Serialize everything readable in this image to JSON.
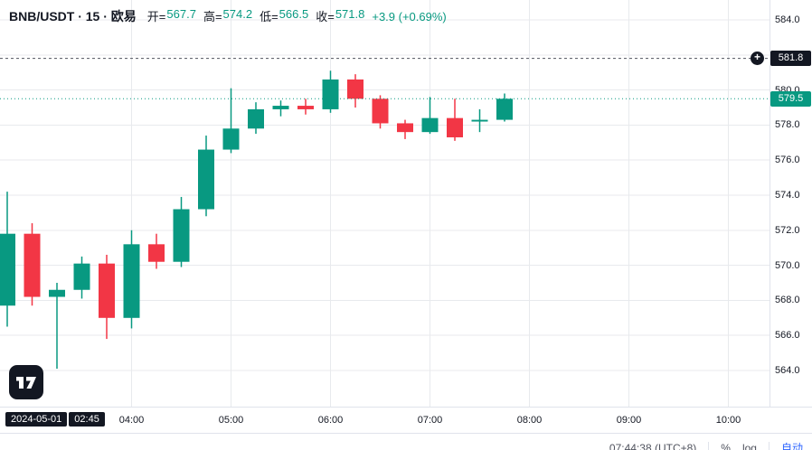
{
  "header": {
    "symbol_title": "BNB/USDT · 15 · 欧易",
    "ohlc": {
      "open_label": "开=",
      "open_value": "567.7",
      "high_label": "高=",
      "high_value": "574.2",
      "low_label": "低=",
      "low_value": "566.5",
      "close_label": "收=",
      "close_value": "571.8",
      "change_value": "+3.9 (+0.69%)"
    }
  },
  "price_scale": {
    "ticks": [
      "584.0",
      "580.0",
      "578.0",
      "576.0",
      "574.0",
      "572.0",
      "570.0",
      "568.0",
      "566.0",
      "564.0"
    ],
    "alert_price_label": "581.8",
    "current_price_label": "579.5"
  },
  "time_scale": {
    "crosshair_date": "2024-05-01",
    "crosshair_time": "02:45",
    "ticks": [
      {
        "label": "04:00",
        "index": 5
      },
      {
        "label": "05:00",
        "index": 9
      },
      {
        "label": "06:00",
        "index": 13
      },
      {
        "label": "07:00",
        "index": 17
      },
      {
        "label": "08:00",
        "index": 21
      },
      {
        "label": "09:00",
        "index": 25
      },
      {
        "label": "10:00",
        "index": 29
      }
    ]
  },
  "status_bar": {
    "clock": "07:44:38 (UTC+8)",
    "percent_label": "%",
    "log_label": "log",
    "auto_label": "自动"
  },
  "colors": {
    "up": "#089981",
    "down": "#f23645",
    "accent_blue": "#2962ff",
    "badge_dark": "#131722",
    "grid": "#e8eaed",
    "dashed_line": "#50535e"
  },
  "chart_data": {
    "type": "candlestick",
    "title": "BNB/USDT · 15 · 欧易",
    "interval_minutes": 15,
    "ylim": [
      562.0,
      585.2
    ],
    "alert_line": 581.8,
    "last_price": 579.5,
    "candles": [
      {
        "time": "02:45",
        "open": 567.7,
        "high": 574.2,
        "low": 566.5,
        "close": 571.8
      },
      {
        "time": "03:00",
        "open": 571.8,
        "high": 572.4,
        "low": 567.7,
        "close": 568.2
      },
      {
        "time": "03:15",
        "open": 568.2,
        "high": 569.0,
        "low": 564.1,
        "close": 568.6
      },
      {
        "time": "03:30",
        "open": 568.6,
        "high": 570.5,
        "low": 568.1,
        "close": 570.1
      },
      {
        "time": "03:45",
        "open": 570.1,
        "high": 570.6,
        "low": 565.8,
        "close": 567.0
      },
      {
        "time": "04:00",
        "open": 567.0,
        "high": 572.0,
        "low": 566.4,
        "close": 571.2
      },
      {
        "time": "04:15",
        "open": 571.2,
        "high": 571.8,
        "low": 569.8,
        "close": 570.2
      },
      {
        "time": "04:30",
        "open": 570.2,
        "high": 573.9,
        "low": 569.9,
        "close": 573.2
      },
      {
        "time": "04:45",
        "open": 573.2,
        "high": 577.4,
        "low": 572.8,
        "close": 576.6
      },
      {
        "time": "05:00",
        "open": 576.6,
        "high": 580.1,
        "low": 576.4,
        "close": 577.8
      },
      {
        "time": "05:15",
        "open": 577.8,
        "high": 579.3,
        "low": 577.5,
        "close": 578.9
      },
      {
        "time": "05:30",
        "open": 578.9,
        "high": 579.4,
        "low": 578.5,
        "close": 579.1
      },
      {
        "time": "05:45",
        "open": 579.1,
        "high": 579.5,
        "low": 578.6,
        "close": 578.9
      },
      {
        "time": "06:00",
        "open": 578.9,
        "high": 581.1,
        "low": 578.7,
        "close": 580.6
      },
      {
        "time": "06:15",
        "open": 580.6,
        "high": 580.9,
        "low": 579.0,
        "close": 579.5
      },
      {
        "time": "06:30",
        "open": 579.5,
        "high": 579.7,
        "low": 577.8,
        "close": 578.1
      },
      {
        "time": "06:45",
        "open": 578.1,
        "high": 578.3,
        "low": 577.2,
        "close": 577.6
      },
      {
        "time": "07:00",
        "open": 577.6,
        "high": 579.6,
        "low": 577.5,
        "close": 578.4
      },
      {
        "time": "07:15",
        "open": 578.4,
        "high": 579.5,
        "low": 577.1,
        "close": 577.3
      },
      {
        "time": "07:30",
        "open": 578.2,
        "high": 578.9,
        "low": 577.6,
        "close": 578.3
      },
      {
        "time": "07:45",
        "open": 578.3,
        "high": 579.8,
        "low": 578.2,
        "close": 579.5
      }
    ]
  }
}
